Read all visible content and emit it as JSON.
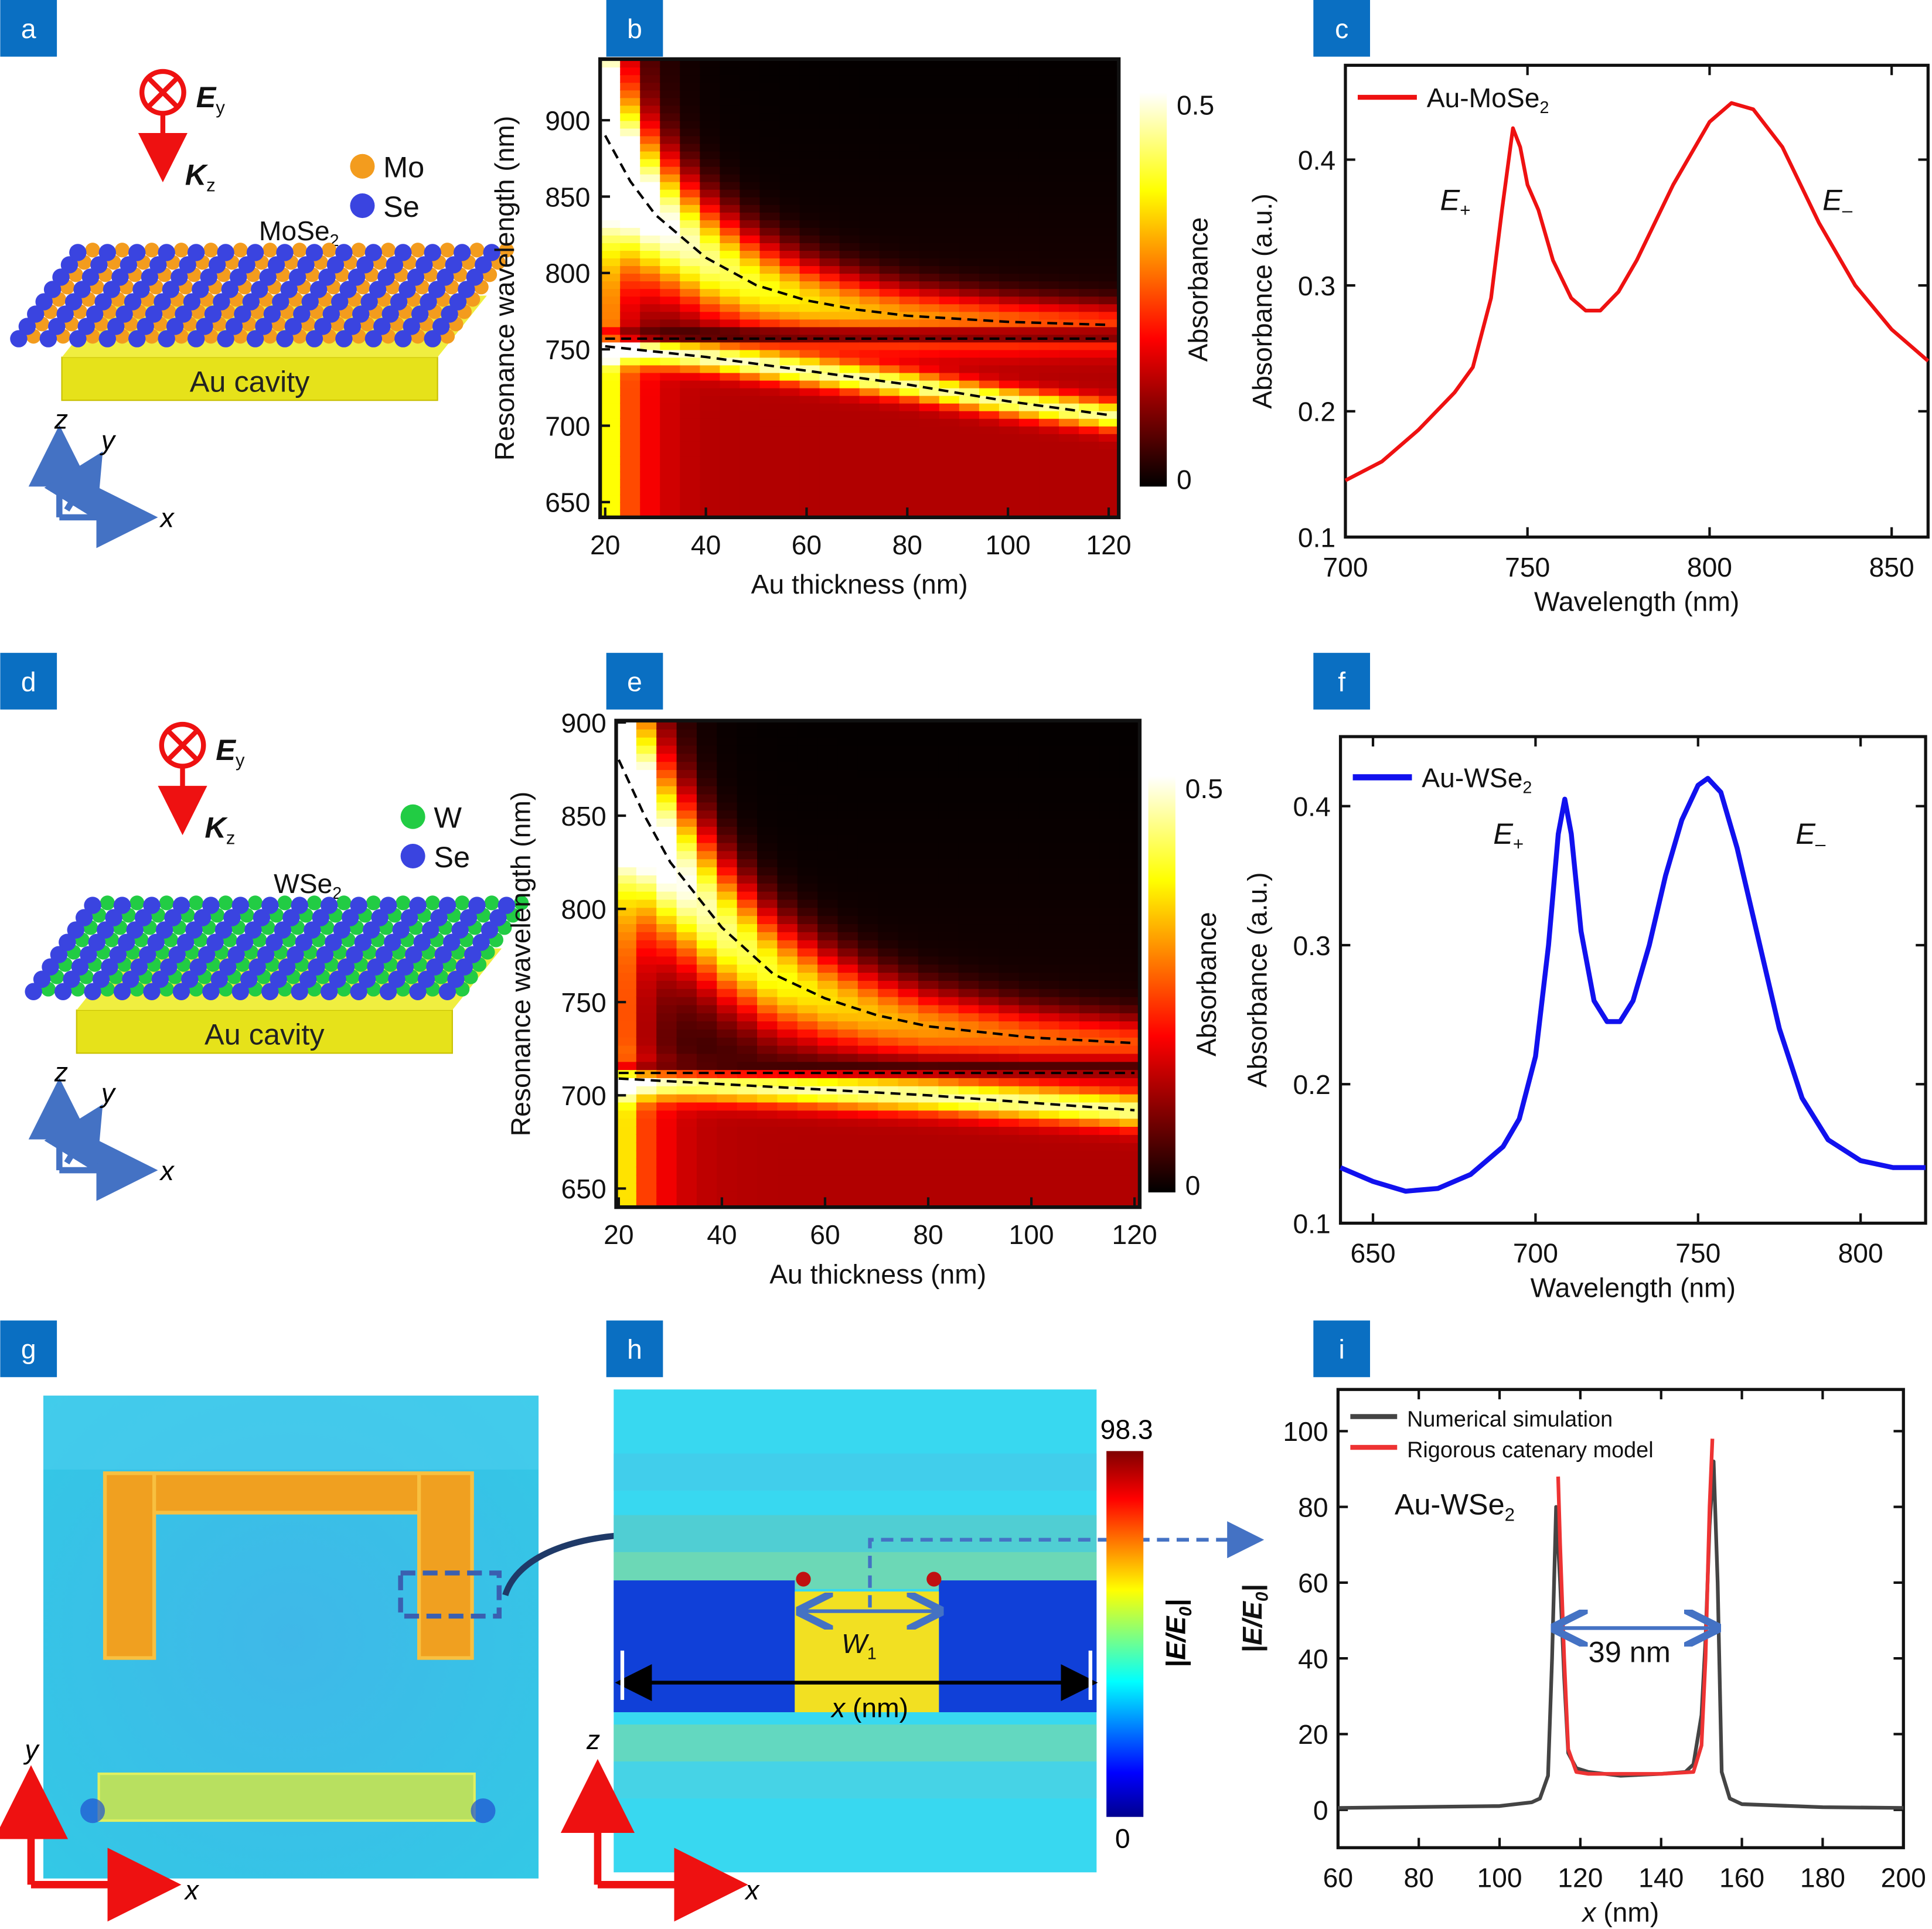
{
  "panel_labels": [
    "a",
    "b",
    "c",
    "d",
    "e",
    "f",
    "g",
    "h",
    "i"
  ],
  "colors": {
    "label_bg": "#0a6fc2",
    "mo": "#f39c1e",
    "se": "#3a44e0",
    "w": "#22cc44",
    "au": "#e6e21a",
    "axis_blue": "#4472c4",
    "axis_red": "#ee1111",
    "field_red": "#ee1111"
  },
  "panel_a": {
    "field": "E",
    "field_sub": "y",
    "wavevector": "K",
    "wavevector_sub": "z",
    "legend": [
      {
        "label": "Mo"
      },
      {
        "label": "Se"
      }
    ],
    "material": "MoSe",
    "material_sub": "2",
    "substrate": "Au cavity",
    "axes": [
      "z",
      "y",
      "x"
    ]
  },
  "panel_d": {
    "field": "E",
    "field_sub": "y",
    "wavevector": "K",
    "wavevector_sub": "z",
    "legend": [
      {
        "label": "W"
      },
      {
        "label": "Se"
      }
    ],
    "material": "WSe",
    "material_sub": "2",
    "substrate": "Au cavity",
    "axes": [
      "z",
      "y",
      "x"
    ]
  },
  "panel_g": {
    "axes": [
      "y",
      "x"
    ]
  },
  "panel_h": {
    "colorbar_max": "98.3",
    "colorbar_min": "0",
    "colorbar_label_a": "|E/E",
    "colorbar_label_sub": "0",
    "colorbar_label_b": "|",
    "gap_label": "W",
    "gap_sub": "1",
    "x_label_var": "x",
    "x_label_unit": " (nm)",
    "axes": [
      "z",
      "x"
    ]
  },
  "chart_data": [
    {
      "panel": "b",
      "type": "heatmap",
      "colormap": "hot",
      "xlabel": "Au thickness (nm)",
      "ylabel": "Resonance wavelength (nm)",
      "xlim": [
        19,
        122
      ],
      "ylim": [
        640,
        940
      ],
      "xticks": [
        20,
        40,
        60,
        80,
        100,
        120
      ],
      "yticks": [
        650,
        700,
        750,
        800,
        850,
        900
      ],
      "colorbar": {
        "label": "Absorbance",
        "min": 0,
        "max": 0.5,
        "ticks": [
          "0.5",
          "0"
        ]
      },
      "dashed_curves": [
        [
          [
            20,
            890
          ],
          [
            25,
            860
          ],
          [
            30,
            838
          ],
          [
            40,
            810
          ],
          [
            50,
            792
          ],
          [
            60,
            782
          ],
          [
            70,
            776
          ],
          [
            80,
            772
          ],
          [
            100,
            768
          ],
          [
            120,
            766
          ]
        ],
        [
          [
            20,
            757
          ],
          [
            120,
            757
          ]
        ],
        [
          [
            20,
            752
          ],
          [
            40,
            745
          ],
          [
            60,
            736
          ],
          [
            80,
            727
          ],
          [
            100,
            716
          ],
          [
            120,
            707
          ]
        ]
      ]
    },
    {
      "panel": "c",
      "type": "line",
      "xlabel": "Wavelength (nm)",
      "ylabel": "Absorbance (a.u.)",
      "xlim": [
        700,
        860
      ],
      "ylim": [
        0.1,
        0.475
      ],
      "xticks": [
        700,
        750,
        800,
        850
      ],
      "yticks": [
        0.1,
        0.2,
        0.3,
        0.4
      ],
      "legend_position": "top-left",
      "series": [
        {
          "name": "Au-MoSe",
          "name_sub": "2",
          "color": "#ee1111",
          "x": [
            700,
            710,
            720,
            730,
            735,
            740,
            743,
            746,
            748,
            750,
            753,
            757,
            762,
            766,
            770,
            775,
            780,
            790,
            800,
            806,
            812,
            820,
            830,
            840,
            850,
            860
          ],
          "y": [
            0.145,
            0.16,
            0.185,
            0.215,
            0.235,
            0.29,
            0.36,
            0.425,
            0.41,
            0.38,
            0.36,
            0.32,
            0.29,
            0.28,
            0.28,
            0.295,
            0.32,
            0.38,
            0.43,
            0.445,
            0.44,
            0.41,
            0.35,
            0.3,
            0.265,
            0.24
          ]
        }
      ],
      "annotations": [
        {
          "text": "E",
          "sub": "+",
          "x": 726,
          "y": 0.36
        },
        {
          "text": "E",
          "sub": "–",
          "x": 831,
          "y": 0.36
        }
      ]
    },
    {
      "panel": "e",
      "type": "heatmap",
      "colormap": "hot",
      "xlabel": "Au thickness (nm)",
      "ylabel": "Resonance wavelength (nm)",
      "xlim": [
        19.5,
        121
      ],
      "ylim": [
        640,
        901
      ],
      "xticks": [
        20,
        40,
        60,
        80,
        100,
        120
      ],
      "yticks": [
        650,
        700,
        750,
        800,
        850,
        900
      ],
      "colorbar": {
        "label": "Absorbance",
        "min": 0,
        "max": 0.5,
        "ticks": [
          "0.5",
          "0"
        ]
      },
      "dashed_curves": [
        [
          [
            20,
            880
          ],
          [
            25,
            850
          ],
          [
            30,
            825
          ],
          [
            40,
            790
          ],
          [
            50,
            765
          ],
          [
            60,
            752
          ],
          [
            70,
            743
          ],
          [
            80,
            737
          ],
          [
            100,
            731
          ],
          [
            120,
            728
          ]
        ],
        [
          [
            20,
            712
          ],
          [
            120,
            712
          ]
        ],
        [
          [
            20,
            709
          ],
          [
            40,
            706
          ],
          [
            60,
            703
          ],
          [
            80,
            700
          ],
          [
            100,
            696
          ],
          [
            120,
            692
          ]
        ]
      ]
    },
    {
      "panel": "f",
      "type": "line",
      "xlabel": "Wavelength (nm)",
      "ylabel": "Absorbance (a.u.)",
      "xlim": [
        640,
        820
      ],
      "ylim": [
        0.1,
        0.45
      ],
      "xticks": [
        650,
        700,
        750,
        800
      ],
      "yticks": [
        0.1,
        0.2,
        0.3,
        0.4
      ],
      "legend_position": "top-left",
      "series": [
        {
          "name": "Au-WSe",
          "name_sub": "2",
          "color": "#1111ee",
          "x": [
            640,
            650,
            660,
            670,
            680,
            690,
            695,
            700,
            704,
            707,
            709,
            711,
            714,
            718,
            722,
            726,
            730,
            735,
            740,
            745,
            750,
            753,
            757,
            762,
            768,
            775,
            782,
            790,
            800,
            810,
            820
          ],
          "y": [
            0.14,
            0.13,
            0.123,
            0.125,
            0.135,
            0.155,
            0.175,
            0.22,
            0.3,
            0.38,
            0.405,
            0.38,
            0.31,
            0.26,
            0.245,
            0.245,
            0.26,
            0.3,
            0.35,
            0.39,
            0.415,
            0.42,
            0.41,
            0.37,
            0.31,
            0.24,
            0.19,
            0.16,
            0.145,
            0.14,
            0.14
          ]
        }
      ],
      "annotations": [
        {
          "text": "E",
          "sub": "+",
          "x": 687,
          "y": 0.373
        },
        {
          "text": "E",
          "sub": "–",
          "x": 780,
          "y": 0.373
        }
      ]
    },
    {
      "panel": "i",
      "type": "line",
      "xlabel_var": "x",
      "xlabel_unit": " (nm)",
      "ylabel_a": "|E/E",
      "ylabel_sub": "0",
      "ylabel_b": "|",
      "xlim": [
        60,
        200
      ],
      "ylim": [
        -10,
        111
      ],
      "xticks": [
        60,
        80,
        100,
        120,
        140,
        160,
        180,
        200
      ],
      "yticks": [
        0,
        20,
        40,
        60,
        80,
        100
      ],
      "legend_position": "top-left",
      "series": [
        {
          "name": "Numerical simulation",
          "color": "#444444",
          "x": [
            60,
            100,
            108,
            110,
            112,
            113,
            114,
            115,
            116,
            117,
            119,
            122,
            130,
            140,
            146,
            148,
            150,
            151,
            152,
            153,
            154,
            155,
            157,
            160,
            180,
            200
          ],
          "y": [
            0.5,
            1,
            2,
            3,
            9,
            40,
            80,
            60,
            35,
            15,
            11,
            10,
            9,
            9.5,
            10,
            12,
            25,
            45,
            75,
            92,
            60,
            10,
            3,
            1.5,
            0.7,
            0.5
          ]
        },
        {
          "name": "Rigorous catenary model",
          "color": "#ee3333",
          "x": [
            114.5,
            115,
            116,
            117,
            119,
            122,
            130,
            140,
            148,
            150,
            151,
            152,
            152.7
          ],
          "y": [
            88,
            70,
            40,
            16,
            10,
            9.5,
            9.5,
            9.5,
            10,
            17,
            40,
            80,
            98
          ]
        }
      ],
      "annotations": [
        {
          "text": "Au-WSe",
          "sub": "2",
          "x": 74,
          "y": 78
        },
        {
          "text": "39 nm",
          "x": 122,
          "y": 39
        }
      ],
      "width_arrow": {
        "x1": 114.5,
        "x2": 153,
        "y": 48
      }
    }
  ]
}
